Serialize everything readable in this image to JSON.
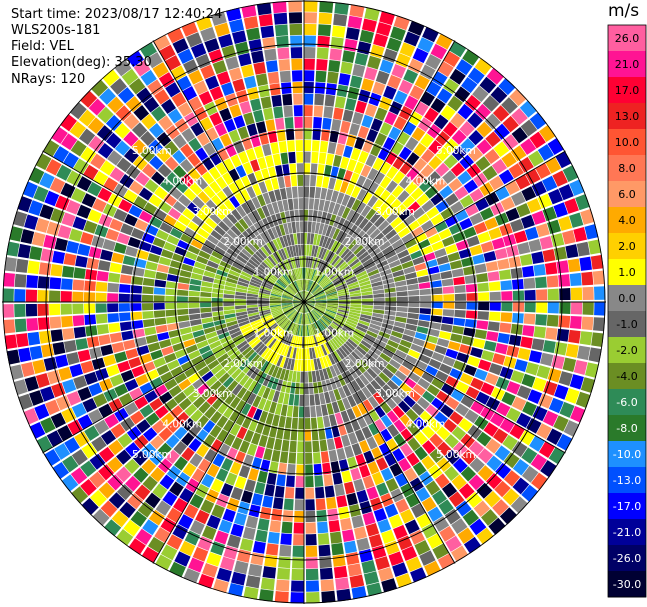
{
  "info": {
    "start_time": "Start time: 2023/08/17 12:40:24",
    "instrument": "WLS200s-181",
    "field": "Field: VEL",
    "elevation": "Elevation(deg): 35.30",
    "nrays": "NRays: 120"
  },
  "chart_data": {
    "type": "heatmap",
    "projection": "polar-ppi",
    "field": "VEL",
    "units": "m/s",
    "n_rays": 120,
    "range_rings": [
      {
        "label": "1.00km"
      },
      {
        "label": "2.00km"
      },
      {
        "label": "3.00km"
      },
      {
        "label": "4.00km"
      },
      {
        "label": "5.00km"
      }
    ],
    "colorbar": {
      "unit": "m/s",
      "ticks": [
        "26.0",
        "21.0",
        "17.0",
        "13.0",
        "10.0",
        "8.0",
        "6.0",
        "4.0",
        "2.0",
        "1.0",
        "0.0",
        "-1.0",
        "-2.0",
        "-4.0",
        "-6.0",
        "-8.0",
        "-10.0",
        "-13.0",
        "-17.0",
        "-21.0",
        "-26.0",
        "-30.0"
      ],
      "colors": [
        "#ff5fa0",
        "#ff1493",
        "#ff0033",
        "#ee2222",
        "#ff5533",
        "#ff7755",
        "#ff9966",
        "#ffaa00",
        "#ffd000",
        "#ffff00",
        "#888888",
        "#666666",
        "#9acd32",
        "#6b8e23",
        "#2e8b57",
        "#2a7a2a",
        "#1e90ff",
        "#0050ff",
        "#0000ff",
        "#000099",
        "#000066",
        "#000033"
      ]
    }
  }
}
